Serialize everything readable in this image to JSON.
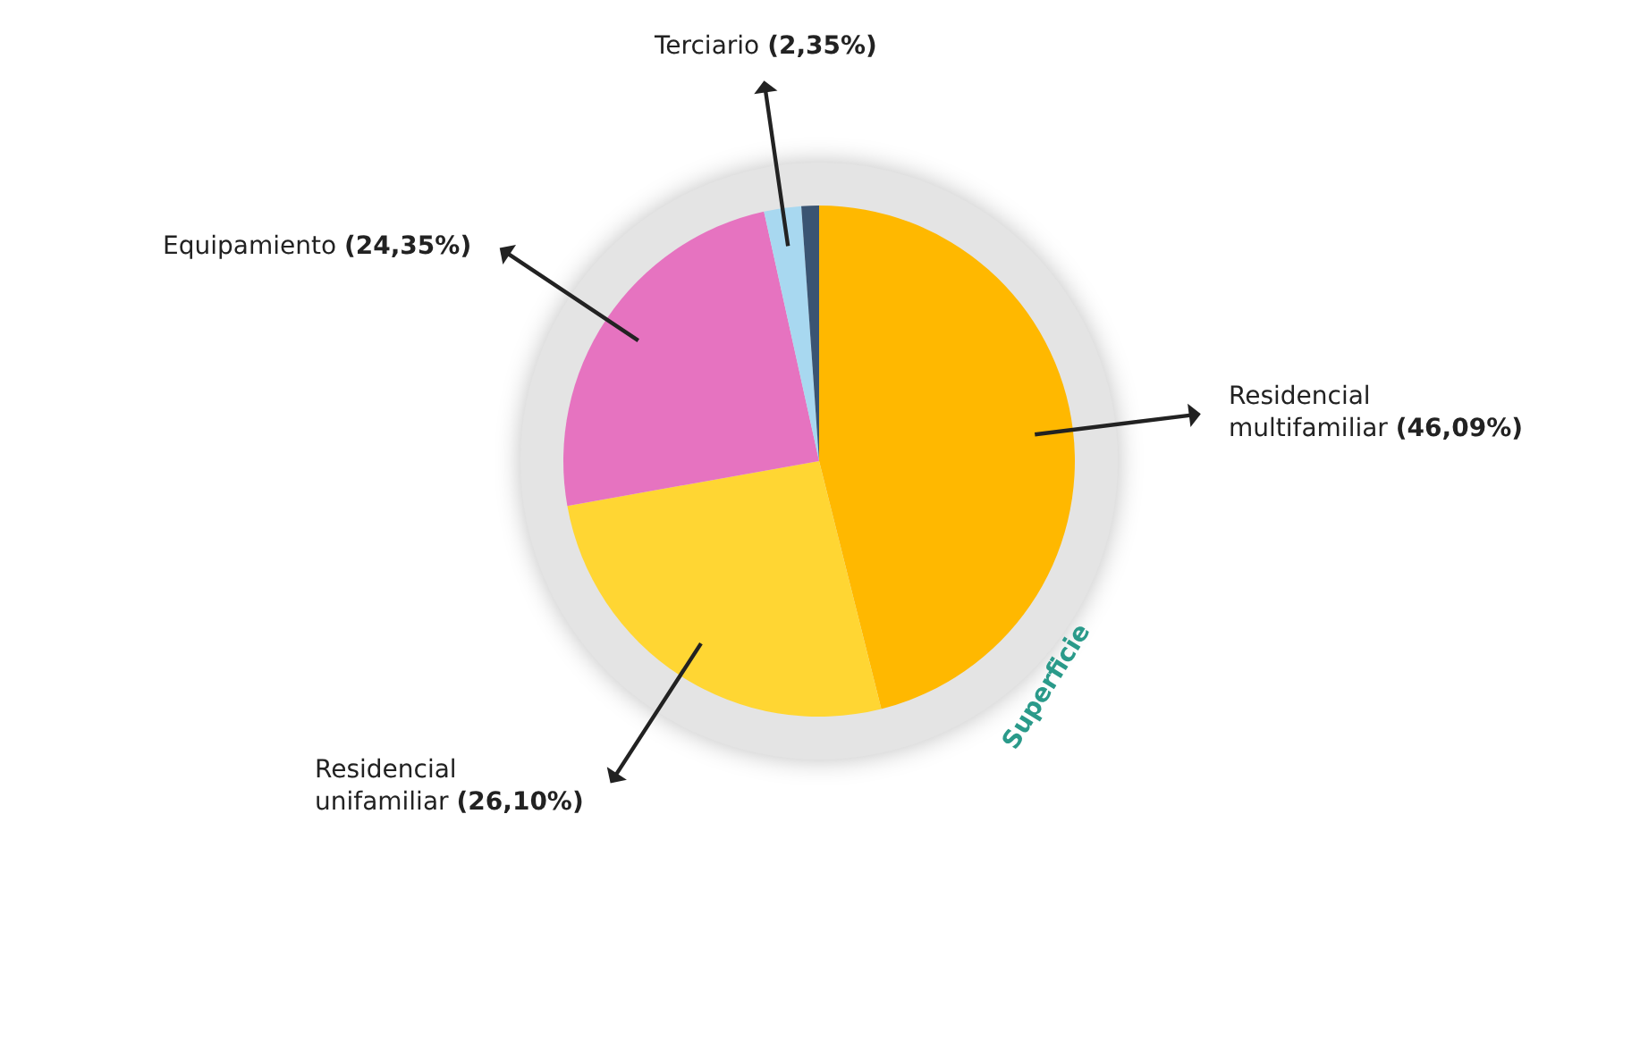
{
  "chart_data": {
    "type": "pie",
    "categories": [
      "Residencial multifamiliar",
      "Residencial unifamiliar",
      "Equipamiento",
      "Terciario",
      null
    ],
    "values": [
      46.09,
      26.1,
      24.35,
      2.35,
      1.11
    ],
    "value_labels": [
      "(46,09%)",
      "(26,10%)",
      "(24,35%)",
      "(2,35%)",
      null
    ],
    "colors": [
      "#ffb800",
      "#ffd633",
      "#e673c0",
      "#a8d8f0",
      "#3a5472"
    ],
    "annotations": [
      "Superficie"
    ],
    "legend": false
  }
}
